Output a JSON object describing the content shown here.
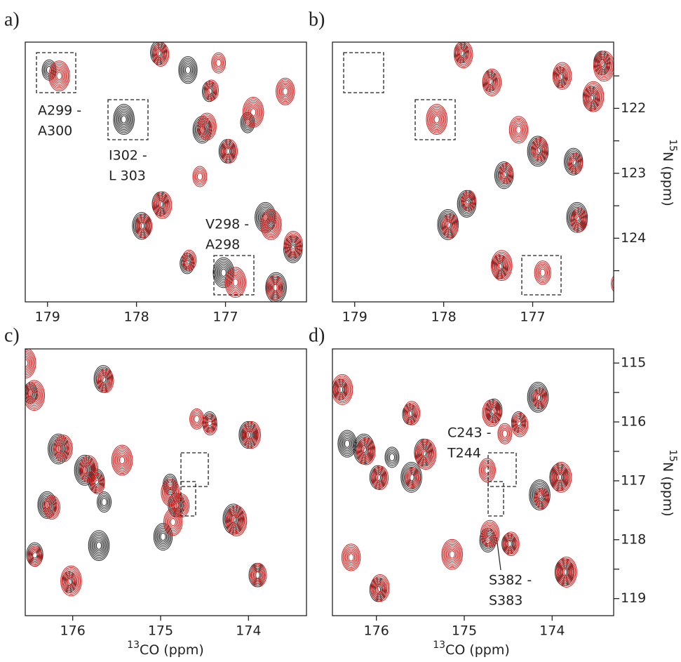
{
  "chart_data": [
    {
      "type": "scatter",
      "panel_label": "a)",
      "xlim": [
        179.25,
        176.09
      ],
      "ylim": [
        120.98,
        124.98
      ],
      "xticks": [
        179,
        178,
        177
      ],
      "series": [
        {
          "color": "#2a2a2a",
          "x": [
            178.97,
            178.13,
            177.93,
            177.72,
            177.42,
            177.01,
            177.25,
            176.97,
            177.17,
            176.54,
            176.23,
            177.74,
            176.74,
            176.42,
            177.41
          ],
          "y": [
            121.41,
            122.17,
            123.81,
            123.47,
            124.39,
            124.53,
            122.33,
            122.66,
            121.74,
            123.68,
            124.17,
            121.14,
            122.22,
            124.76,
            121.41
          ]
        },
        {
          "color": "#d0201f",
          "x": [
            178.88,
            177.72,
            177.93,
            177.42,
            176.9,
            177.22,
            176.97,
            177.17,
            176.5,
            176.25,
            177.74,
            177.09,
            176.7,
            176.34,
            176.46,
            177.3
          ],
          "y": [
            121.5,
            123.49,
            123.81,
            124.34,
            124.68,
            122.28,
            122.66,
            121.72,
            123.79,
            124.1,
            121.17,
            121.3,
            122.06,
            121.74,
            124.76,
            123.05
          ]
        }
      ],
      "annotations": [
        [
          "A299 -",
          "A300"
        ],
        [
          "I302 -",
          "L 303"
        ],
        [
          "V298 -",
          "A298"
        ]
      ]
    },
    {
      "type": "scatter",
      "panel_label": "b)",
      "xlim": [
        179.25,
        176.09
      ],
      "ylim": [
        120.98,
        124.98
      ],
      "xticks": [
        179,
        178,
        177
      ],
      "yticks": [
        122,
        123,
        124
      ],
      "yminorticks": [
        121.5,
        122.5,
        123.5,
        124.5
      ],
      "ylabel_isotope": "15",
      "ylabel": "N (ppm)",
      "series": [
        {
          "color": "#2a2a2a",
          "x": [
            177.79,
            177.94,
            177.73,
            177.36,
            177.47,
            176.93,
            176.53,
            176.33,
            176.68,
            176.49,
            177.31,
            176.21
          ],
          "y": [
            121.14,
            123.79,
            123.47,
            124.44,
            121.58,
            122.66,
            122.82,
            121.85,
            121.52,
            123.68,
            123.03,
            121.3
          ]
        },
        {
          "color": "#d0201f",
          "x": [
            178.09,
            177.79,
            177.94,
            177.73,
            177.36,
            177.47,
            176.93,
            176.53,
            176.33,
            176.68,
            176.49,
            177.31,
            176.21,
            177.17,
            176.9,
            176.05
          ],
          "y": [
            122.17,
            121.17,
            123.81,
            123.42,
            124.42,
            121.6,
            122.63,
            122.85,
            121.82,
            121.5,
            123.72,
            123.0,
            121.35,
            122.33,
            124.53,
            124.7
          ]
        }
      ]
    },
    {
      "type": "scatter",
      "panel_label": "c)",
      "xlim": [
        176.54,
        173.34
      ],
      "ylim": [
        114.76,
        119.29
      ],
      "xticks": [
        176,
        175,
        174
      ],
      "xlabel_isotope": "13",
      "xlabel": "CO (ppm)",
      "series": [
        {
          "color": "#2a2a2a",
          "x": [
            176.47,
            176.15,
            176.28,
            176.42,
            176.03,
            175.85,
            175.64,
            175.72,
            175.63,
            175.69,
            174.96,
            174.81,
            174.43,
            174.16,
            173.99,
            173.89,
            174.88
          ],
          "y": [
            115.51,
            116.46,
            117.41,
            118.25,
            118.72,
            116.82,
            115.27,
            117.0,
            117.36,
            118.1,
            117.95,
            117.41,
            116.0,
            117.65,
            116.22,
            118.6,
            117.06
          ]
        },
        {
          "color": "#d0201f",
          "x": [
            176.45,
            176.12,
            176.25,
            176.44,
            176.03,
            175.83,
            175.64,
            175.73,
            175.45,
            174.9,
            174.78,
            174.45,
            174.15,
            173.98,
            173.9,
            174.6,
            176.55,
            174.87
          ],
          "y": [
            115.55,
            116.45,
            117.45,
            118.28,
            118.7,
            116.8,
            115.3,
            117.05,
            116.65,
            117.2,
            117.42,
            116.05,
            117.68,
            116.22,
            118.6,
            115.95,
            115.0,
            117.7
          ]
        }
      ]
    },
    {
      "type": "scatter",
      "panel_label": "d)",
      "xlim": [
        176.5,
        173.3
      ],
      "ylim": [
        114.76,
        119.29
      ],
      "xticks": [
        176,
        175,
        174
      ],
      "yticks": [
        115,
        116,
        117,
        118,
        119
      ],
      "yminorticks": [
        115.5,
        116.5,
        117.5,
        118.5
      ],
      "xlabel_isotope": "13",
      "xlabel": "CO (ppm)",
      "ylabel_isotope": "15",
      "ylabel": "N (ppm)",
      "series": [
        {
          "color": "#2a2a2a",
          "x": [
            176.4,
            176.13,
            176.32,
            175.97,
            175.81,
            175.59,
            175.45,
            174.65,
            174.37,
            174.15,
            173.91,
            174.72,
            174.48,
            174.13,
            173.85,
            175.97,
            175.61
          ],
          "y": [
            115.45,
            116.46,
            116.37,
            116.94,
            116.6,
            116.94,
            116.52,
            115.81,
            116.0,
            115.58,
            116.94,
            118.01,
            118.07,
            117.24,
            118.55,
            118.85,
            115.87
          ]
        },
        {
          "color": "#d0201f",
          "x": [
            176.4,
            176.13,
            175.97,
            175.6,
            175.45,
            174.7,
            174.38,
            174.15,
            173.91,
            174.72,
            174.48,
            174.13,
            173.85,
            175.97,
            175.61,
            174.55,
            175.15,
            176.3,
            174.75
          ],
          "y": [
            115.45,
            116.5,
            116.95,
            116.95,
            116.55,
            115.85,
            116.05,
            115.6,
            116.94,
            117.9,
            118.07,
            117.3,
            118.55,
            118.82,
            115.85,
            116.2,
            118.25,
            118.3,
            116.82
          ]
        }
      ],
      "annotations": [
        [
          "C243 -",
          "T244"
        ],
        [
          "S382 -",
          "S383"
        ]
      ]
    }
  ]
}
